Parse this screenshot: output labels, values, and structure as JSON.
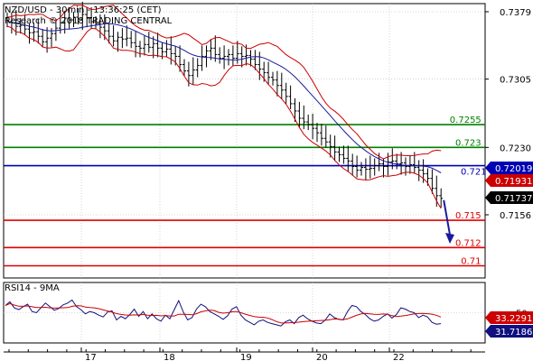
{
  "header": {
    "line1": "NZD/USD - 30min - 13:36:25 (CET)",
    "line2": "Research © 2018 TRADING CENTRAL"
  },
  "colors": {
    "candles": "#000000",
    "bollinger": "#cc0000",
    "moving_average": "#1a1aa0",
    "support_line": "#e00000",
    "resistance_line": "#008000",
    "pivot_line": "#0000b4",
    "arrow": "#1a1a9c",
    "current_price_box": "#000000",
    "rsi_line": "#101080",
    "rsi_signal": "#cc0000"
  },
  "chart_data": [
    {
      "type": "candlestick",
      "title": "NZD/USD - 30min",
      "x_tick_labels": [
        "17",
        "18",
        "19",
        "20",
        "22"
      ],
      "y_tick_labels": [
        "0.7379",
        "0.7305",
        "0.7230",
        "0.7156"
      ],
      "ylim": [
        0.7095,
        0.7395
      ],
      "current_price": "0.71737",
      "overlays": [
        {
          "name": "Bollinger upper",
          "value_labels": [
            "0.72019"
          ]
        },
        {
          "name": "Bollinger lower",
          "value_labels": [
            "0.71931"
          ]
        }
      ],
      "levels": [
        {
          "label": "0.7255",
          "value": 0.7255,
          "kind": "resistance"
        },
        {
          "label": "0.723",
          "value": 0.723,
          "kind": "resistance"
        },
        {
          "label": "0.721",
          "value": 0.721,
          "kind": "pivot"
        },
        {
          "label": "0.715",
          "value": 0.715,
          "kind": "support"
        },
        {
          "label": "0.712",
          "value": 0.712,
          "kind": "support"
        },
        {
          "label": "0.71",
          "value": 0.71,
          "kind": "support"
        }
      ],
      "close_series": [
        0.7368,
        0.7367,
        0.7363,
        0.7364,
        0.736,
        0.7356,
        0.7357,
        0.7352,
        0.7346,
        0.735,
        0.7355,
        0.7361,
        0.7367,
        0.7372,
        0.737,
        0.7373,
        0.7371,
        0.7376,
        0.7372,
        0.7368,
        0.7366,
        0.7362,
        0.7358,
        0.7352,
        0.7347,
        0.7351,
        0.7349,
        0.735,
        0.7345,
        0.7341,
        0.7339,
        0.7343,
        0.734,
        0.7344,
        0.7339,
        0.7335,
        0.7338,
        0.7333,
        0.733,
        0.7321,
        0.7314,
        0.7309,
        0.7315,
        0.732,
        0.733,
        0.7336,
        0.7339,
        0.7332,
        0.7328,
        0.733,
        0.7332,
        0.7328,
        0.7333,
        0.733,
        0.7331,
        0.7327,
        0.7321,
        0.7316,
        0.7312,
        0.7307,
        0.7304,
        0.7298,
        0.7293,
        0.7286,
        0.7278,
        0.727,
        0.7262,
        0.7258,
        0.7255,
        0.7251,
        0.7246,
        0.724,
        0.7236,
        0.7231,
        0.7225,
        0.7222,
        0.7218,
        0.7215,
        0.7209,
        0.7205,
        0.7208,
        0.7206,
        0.7207,
        0.721,
        0.7212,
        0.7209,
        0.7214,
        0.7215,
        0.7212,
        0.7213,
        0.7209,
        0.7211,
        0.7208,
        0.7205,
        0.7201,
        0.7196,
        0.7185,
        0.7177,
        0.7174
      ]
    },
    {
      "type": "line",
      "title": "RSI14 - 9MA",
      "y_tick_labels": [
        "50"
      ],
      "ylim": [
        0,
        100
      ],
      "series": [
        {
          "name": "RSI14",
          "last_label": "31.7186"
        },
        {
          "name": "9MA",
          "last_label": "33.2291"
        }
      ],
      "rsi_series": [
        62,
        68,
        58,
        55,
        60,
        64,
        52,
        50,
        58,
        66,
        60,
        54,
        57,
        63,
        66,
        71,
        60,
        55,
        48,
        52,
        50,
        46,
        43,
        51,
        53,
        38,
        44,
        40,
        47,
        56,
        44,
        52,
        40,
        48,
        40,
        36,
        46,
        40,
        55,
        70,
        52,
        38,
        42,
        56,
        64,
        60,
        52,
        48,
        44,
        39,
        45,
        56,
        60,
        46,
        38,
        34,
        30,
        36,
        38,
        34,
        32,
        30,
        28,
        35,
        38,
        32,
        42,
        46,
        40,
        36,
        33,
        32,
        38,
        48,
        42,
        39,
        38,
        52,
        62,
        60,
        52,
        47,
        40,
        36,
        38,
        44,
        48,
        41,
        47,
        58,
        56,
        52,
        50,
        42,
        46,
        43,
        34,
        31,
        32
      ]
    }
  ]
}
